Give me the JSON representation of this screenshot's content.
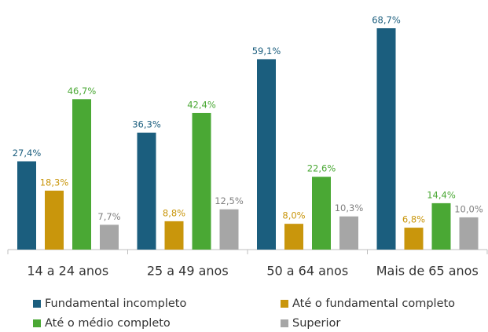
{
  "chart_data": {
    "type": "bar",
    "categories": [
      "14 a 24 anos",
      "25 a 49 anos",
      "50 a 64 anos",
      "Mais de 65 anos"
    ],
    "series": [
      {
        "name": "Fundamental incompleto",
        "color": "#1b5e7e",
        "values": [
          27.4,
          36.3,
          59.1,
          68.7
        ],
        "value_labels": [
          "27,4%",
          "36,3%",
          "59,1%",
          "68,7%"
        ]
      },
      {
        "name": "Até o fundamental completo",
        "color": "#c9960c",
        "values": [
          18.3,
          8.8,
          8.0,
          6.8
        ],
        "value_labels": [
          "18,3%",
          "8,8%",
          "8,0%",
          "6,8%"
        ]
      },
      {
        "name": "Até o médio completo",
        "color": "#4aa834",
        "values": [
          46.7,
          42.4,
          22.6,
          14.4
        ],
        "value_labels": [
          "46,7%",
          "42,4%",
          "22,6%",
          "14,4%"
        ]
      },
      {
        "name": "Superior",
        "color": "#a6a6a6",
        "values": [
          7.7,
          12.5,
          10.3,
          10.0
        ],
        "value_labels": [
          "7,7%",
          "12,5%",
          "10,3%",
          "10,0%"
        ]
      }
    ],
    "legend": "bottom"
  }
}
